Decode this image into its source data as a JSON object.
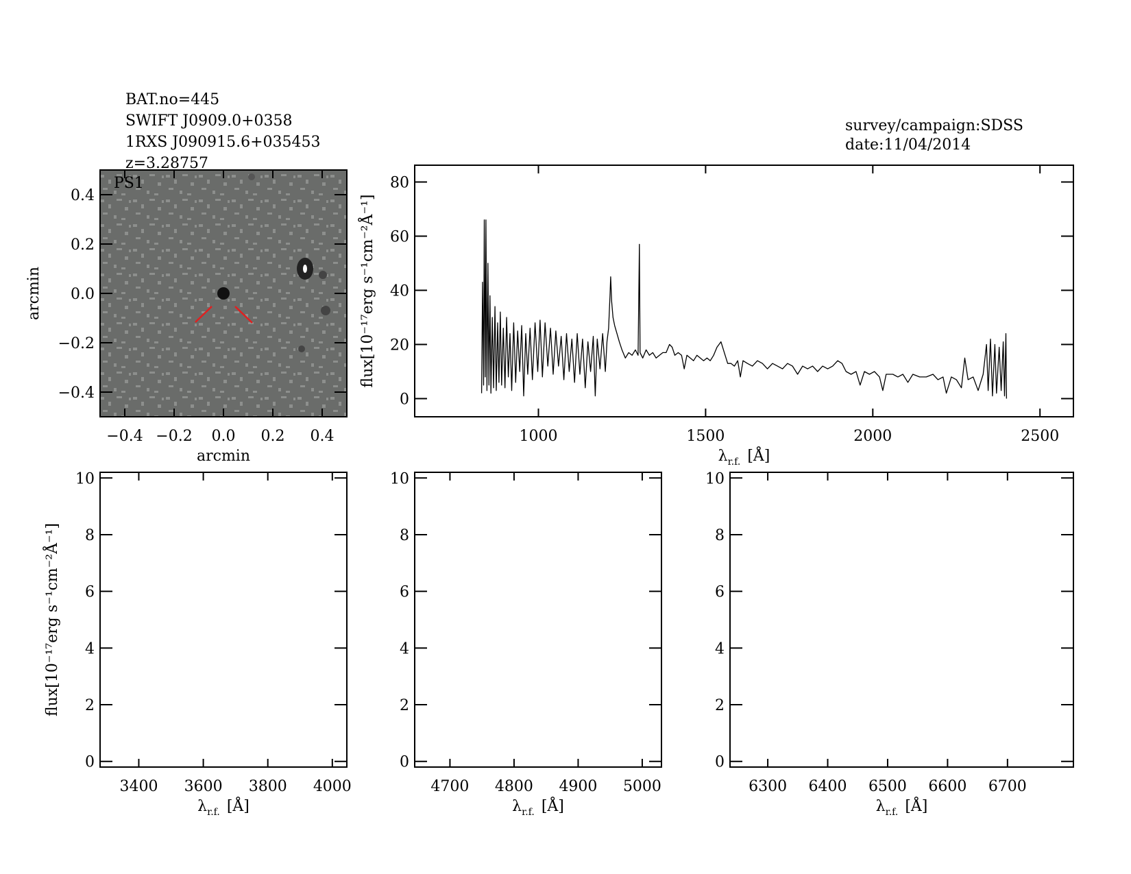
{
  "header": {
    "left": [
      "BAT.no=445",
      "SWIFT J0909.0+0358",
      "1RXS J090915.6+035453",
      "z=3.28757"
    ],
    "right": [
      "survey/campaign:SDSS",
      "date:11/04/2014"
    ]
  },
  "chart_data": [
    {
      "type": "image",
      "label": "PS1",
      "x_label": "arcmin",
      "y_label": "arcmin",
      "xlim": [
        -0.5,
        0.5
      ],
      "ylim": [
        -0.5,
        0.5
      ],
      "xticks": [
        {
          "value": -0.4,
          "label": "−0.4"
        },
        {
          "value": -0.2,
          "label": "−0.2"
        },
        {
          "value": 0,
          "label": "0.0"
        },
        0.2,
        0.4
      ],
      "yticks": [
        {
          "value": -0.4,
          "label": "−0.4"
        },
        {
          "value": -0.2,
          "label": "−0.2"
        },
        {
          "value": 0,
          "label": "0.0"
        },
        0.2,
        0.4
      ]
    },
    {
      "type": "line",
      "x_label": {
        "symbol": "λ",
        "subscript": "r.f.",
        "unit": "[Å]"
      },
      "y_label": "flux[10⁻¹⁷erg s⁻¹cm⁻²Å⁻¹]",
      "xlim": [
        630,
        2600
      ],
      "ylim": [
        -6.7,
        86.2
      ],
      "xticks": [
        1000,
        1500,
        2000,
        2500
      ],
      "yticks": [
        0,
        20,
        40,
        60,
        80
      ],
      "x": [
        830,
        833,
        836,
        838,
        841,
        843,
        846,
        849,
        852,
        855,
        858,
        862,
        866,
        870,
        874,
        878,
        882,
        886,
        890,
        895,
        900,
        905,
        910,
        915,
        920,
        926,
        932,
        938,
        944,
        950,
        956,
        962,
        968,
        975,
        982,
        990,
        998,
        1005,
        1012,
        1020,
        1028,
        1036,
        1044,
        1052,
        1060,
        1068,
        1076,
        1084,
        1092,
        1100,
        1108,
        1116,
        1124,
        1132,
        1140,
        1148,
        1156,
        1164,
        1170,
        1176,
        1184,
        1192,
        1200,
        1205,
        1210,
        1214,
        1216,
        1219,
        1223,
        1228,
        1235,
        1242,
        1250,
        1260,
        1270,
        1280,
        1290,
        1298,
        1302,
        1304,
        1312,
        1322,
        1332,
        1342,
        1352,
        1362,
        1372,
        1382,
        1392,
        1400,
        1408,
        1418,
        1428,
        1436,
        1444,
        1454,
        1464,
        1474,
        1484,
        1494,
        1504,
        1514,
        1524,
        1534,
        1546,
        1556,
        1566,
        1576,
        1586,
        1596,
        1604,
        1612,
        1625,
        1640,
        1655,
        1670,
        1685,
        1700,
        1715,
        1730,
        1745,
        1760,
        1775,
        1790,
        1805,
        1820,
        1835,
        1850,
        1865,
        1880,
        1895,
        1908,
        1920,
        1935,
        1950,
        1962,
        1975,
        1990,
        2005,
        2020,
        2030,
        2040,
        2060,
        2075,
        2090,
        2105,
        2120,
        2140,
        2160,
        2180,
        2195,
        2210,
        2220,
        2235,
        2250,
        2265,
        2275,
        2285,
        2300,
        2315,
        2330,
        2340,
        2345,
        2352,
        2358,
        2365,
        2370,
        2378,
        2384,
        2390,
        2394,
        2398,
        2400
      ],
      "series": [
        {
          "color": "#000000",
          "values": [
            2,
            43,
            5,
            66,
            8,
            66,
            3,
            50,
            5,
            38,
            2,
            30,
            4,
            34,
            3,
            28,
            6,
            32,
            5,
            26,
            4,
            30,
            8,
            24,
            3,
            28,
            6,
            25,
            10,
            27,
            1,
            24,
            9,
            26,
            7,
            28,
            10,
            29,
            8,
            28,
            12,
            26,
            9,
            25,
            12,
            23,
            7,
            24,
            10,
            22,
            6,
            24,
            9,
            22,
            4,
            21,
            10,
            23,
            1,
            22,
            11,
            24,
            10,
            21,
            26,
            38,
            45,
            36,
            30,
            27,
            24,
            21,
            18,
            15,
            17,
            16,
            18,
            16,
            57,
            17,
            15,
            18,
            16,
            17,
            15,
            16,
            17,
            17,
            20,
            19,
            16,
            17,
            16,
            11,
            16,
            15,
            14,
            16,
            15,
            14,
            15,
            14,
            16,
            19,
            21,
            17,
            13,
            13,
            12,
            14,
            8,
            14,
            13,
            12,
            14,
            13,
            11,
            13,
            12,
            11,
            13,
            12,
            9,
            12,
            11,
            12,
            10,
            12,
            11,
            12,
            14,
            13,
            10,
            9,
            10,
            5,
            10,
            9,
            10,
            8,
            3,
            9,
            9,
            8,
            9,
            6,
            9,
            8,
            8,
            9,
            7,
            8,
            2,
            8,
            7,
            4,
            15,
            7,
            8,
            3,
            9,
            20,
            3,
            22,
            1,
            20,
            2,
            19,
            3,
            21,
            1,
            24,
            0
          ]
        }
      ]
    },
    {
      "type": "line",
      "x_label": {
        "symbol": "λ",
        "subscript": "r.f.",
        "unit": "[Å]"
      },
      "y_label": "flux[10⁻¹⁷erg s⁻¹cm⁻²Å⁻¹]",
      "xlim": [
        3280,
        4045
      ],
      "ylim": [
        -0.2,
        10.2
      ],
      "xticks": [
        3400,
        3600,
        3800,
        4000
      ],
      "yticks": [
        0,
        2,
        4,
        6,
        8,
        10
      ],
      "series": []
    },
    {
      "type": "line",
      "x_label": {
        "symbol": "λ",
        "subscript": "r.f.",
        "unit": "[Å]"
      },
      "xlim": [
        4645,
        5030
      ],
      "ylim": [
        -0.2,
        10.2
      ],
      "xticks": [
        4700,
        4800,
        4900,
        5000
      ],
      "yticks": [
        0,
        2,
        4,
        6,
        8,
        10
      ],
      "series": []
    },
    {
      "type": "line",
      "x_label": {
        "symbol": "λ",
        "subscript": "r.f.",
        "unit": "[Å]"
      },
      "xlim": [
        6237,
        6810
      ],
      "ylim": [
        -0.2,
        10.2
      ],
      "xticks": [
        6300,
        6400,
        6500,
        6600,
        6700
      ],
      "yticks": [
        0,
        2,
        4,
        6,
        8,
        10
      ],
      "series": []
    }
  ]
}
